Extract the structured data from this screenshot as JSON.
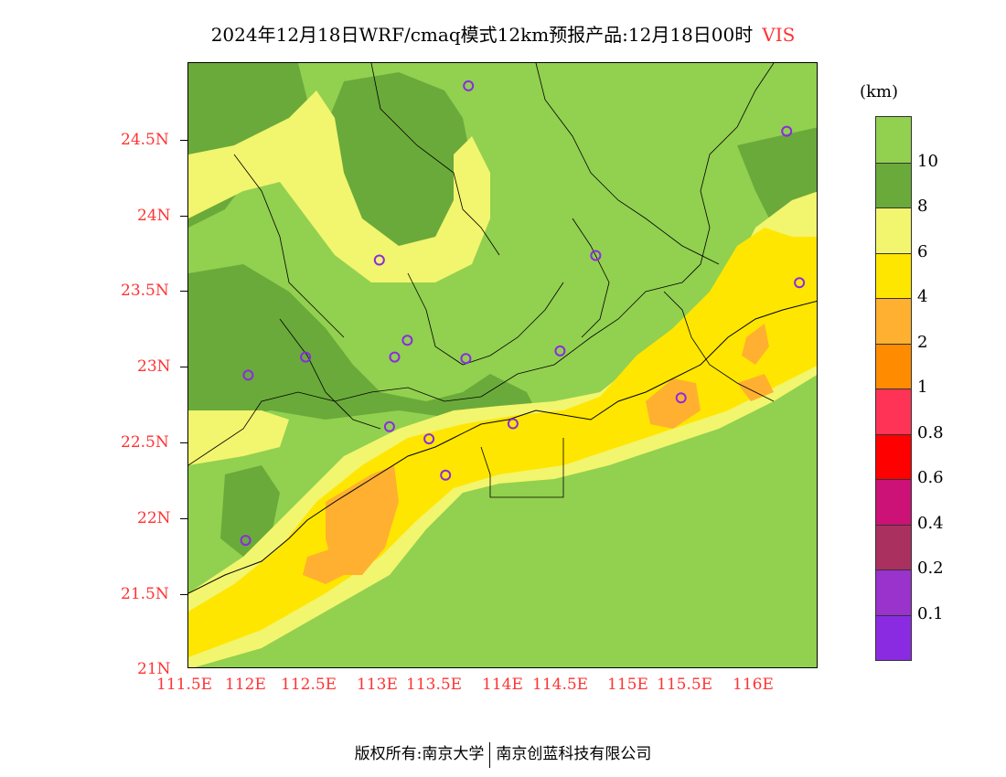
{
  "title": {
    "main": "2024年12月18日WRF/cmaq模式12km预报产品:12月18日00时",
    "variable": "VIS"
  },
  "map": {
    "lat_labels": [
      "24.5N",
      "24N",
      "23.5N",
      "23N",
      "22.5N",
      "22N",
      "21.5N",
      "21N"
    ],
    "lon_labels": [
      "111.5E",
      "112E",
      "112.5E",
      "113E",
      "113.5E",
      "114E",
      "114.5E",
      "115E",
      "115.5E",
      "116E"
    ],
    "stations": [
      {
        "lon": 113.7,
        "lat": 24.85
      },
      {
        "lon": 116.2,
        "lat": 24.55
      },
      {
        "lon": 113.0,
        "lat": 23.7
      },
      {
        "lon": 114.7,
        "lat": 23.73
      },
      {
        "lon": 116.3,
        "lat": 23.55
      },
      {
        "lon": 112.42,
        "lat": 23.06
      },
      {
        "lon": 113.12,
        "lat": 23.06
      },
      {
        "lon": 113.22,
        "lat": 23.17
      },
      {
        "lon": 113.68,
        "lat": 23.05
      },
      {
        "lon": 114.42,
        "lat": 23.1
      },
      {
        "lon": 111.97,
        "lat": 22.94
      },
      {
        "lon": 113.08,
        "lat": 22.6
      },
      {
        "lon": 113.39,
        "lat": 22.52
      },
      {
        "lon": 114.05,
        "lat": 22.62
      },
      {
        "lon": 113.52,
        "lat": 22.28
      },
      {
        "lon": 111.95,
        "lat": 21.85
      },
      {
        "lon": 115.37,
        "lat": 22.79
      }
    ]
  },
  "legend": {
    "unit": "(km)",
    "labels": [
      "10",
      "8",
      "6",
      "4",
      "2",
      "1",
      "0.8",
      "0.6",
      "0.4",
      "0.2",
      "0.1"
    ],
    "colors": [
      "#92d050",
      "#6aaa3a",
      "#f2f56e",
      "#ffe600",
      "#ffb030",
      "#ff8c00",
      "#ff3355",
      "#ff0000",
      "#cc1177",
      "#aa3060",
      "#9933cc",
      "#8a2be2"
    ]
  },
  "footer": {
    "left": "版权所有:南京大学",
    "right": "南京创蓝科技有限公司"
  }
}
